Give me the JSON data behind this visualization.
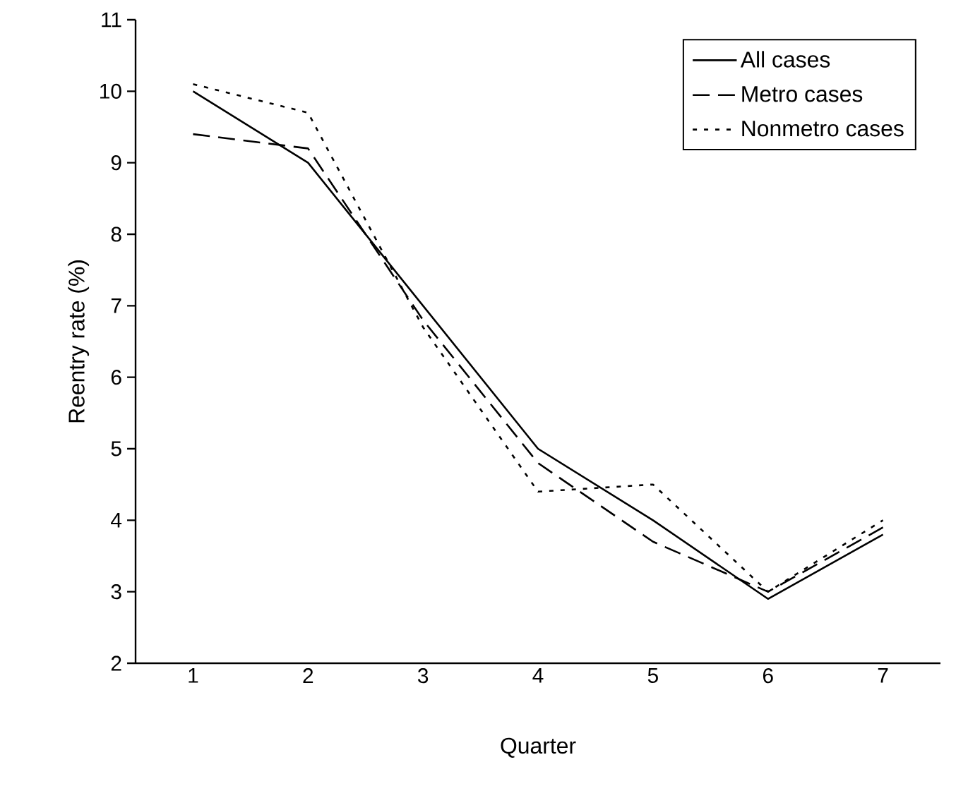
{
  "chart_data": {
    "type": "line",
    "xlabel": "Quarter",
    "ylabel": "Reentry rate (%)",
    "categories": [
      "1",
      "2",
      "3",
      "4",
      "5",
      "6",
      "7"
    ],
    "ylim": [
      2,
      11
    ],
    "yticks": [
      2,
      3,
      4,
      5,
      6,
      7,
      8,
      9,
      10,
      11
    ],
    "grid": false,
    "legend": "top right",
    "marker": "none",
    "series": [
      {
        "name": "All cases",
        "color": "#000000",
        "line_style": "solid",
        "values": [
          10.0,
          9.0,
          7.0,
          5.0,
          4.0,
          2.9,
          3.8
        ]
      },
      {
        "name": "Metro cases",
        "color": "#000000",
        "line_style": "dashed",
        "values": [
          9.4,
          9.2,
          6.8,
          4.8,
          3.7,
          3.0,
          3.9
        ]
      },
      {
        "name": "Nonmetro cases",
        "color": "#000000",
        "line_style": "dotted",
        "values": [
          10.1,
          9.7,
          6.7,
          4.4,
          4.5,
          3.0,
          4.0
        ]
      }
    ]
  }
}
